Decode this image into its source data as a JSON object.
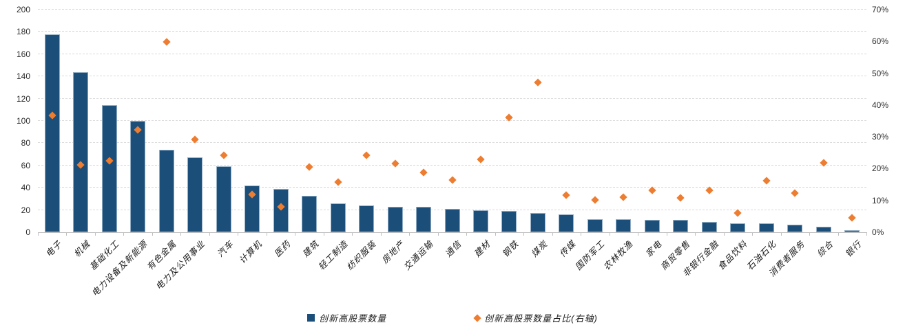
{
  "chart_data": {
    "type": "bar",
    "subtype": "combo-bar-scatter",
    "categories": [
      "电子",
      "机械",
      "基础化工",
      "电力设备及新能源",
      "有色金属",
      "电力及公用事业",
      "汽车",
      "计算机",
      "医药",
      "建筑",
      "轻工制造",
      "纺织服装",
      "房地产",
      "交通运输",
      "通信",
      "建材",
      "钢铁",
      "煤炭",
      "传媒",
      "国防军工",
      "农林牧渔",
      "家电",
      "商贸零售",
      "非银行金融",
      "食品饮料",
      "石油石化",
      "消费者服务",
      "综合",
      "银行"
    ],
    "series": [
      {
        "name": "创新高股票数量",
        "type": "bar",
        "axis": "left",
        "color": "#1b4e79",
        "values": [
          178,
          144,
          114,
          100,
          74,
          67,
          59,
          42,
          39,
          33,
          26,
          24,
          23,
          23,
          21,
          20,
          19,
          17,
          16,
          12,
          12,
          11,
          11,
          9,
          8,
          8,
          7,
          5,
          2
        ]
      },
      {
        "name": "创新高股票数量占比(右轴)",
        "type": "scatter",
        "marker": "diamond",
        "axis": "right",
        "color": "#ed7d31",
        "values_pct": [
          36.7,
          21.2,
          22.5,
          32.2,
          59.8,
          29.1,
          24.3,
          11.9,
          8.0,
          20.6,
          15.8,
          24.2,
          21.7,
          18.8,
          16.4,
          22.9,
          36.1,
          47.0,
          11.6,
          10.1,
          11.1,
          13.1,
          10.7,
          13.1,
          6.1,
          16.1,
          12.4,
          21.9,
          4.6
        ]
      }
    ],
    "left_axis": {
      "min": 0,
      "max": 200,
      "step": 20,
      "tick_labels": [
        "0",
        "20",
        "40",
        "60",
        "80",
        "100",
        "120",
        "140",
        "160",
        "180",
        "200"
      ]
    },
    "right_axis": {
      "min": 0,
      "max": 70,
      "step": 10,
      "tick_labels": [
        "0%",
        "10%",
        "20%",
        "30%",
        "40%",
        "50%",
        "60%",
        "70%"
      ]
    },
    "title": "",
    "xlabel": "",
    "ylabel": "",
    "grid": "horizontal-dashed",
    "legend_position": "bottom-center"
  },
  "legend": {
    "bar_label": "创新高股票数量",
    "scatter_label": "创新高股票数量占比(右轴)"
  },
  "colors": {
    "bar": "#1b4e79",
    "bar_border": "#93aec5",
    "diamond": "#ed7d31",
    "gridline": "#d9d9d9",
    "axis_line": "#bfbfbf",
    "tick_text": "#2b2b2b"
  }
}
